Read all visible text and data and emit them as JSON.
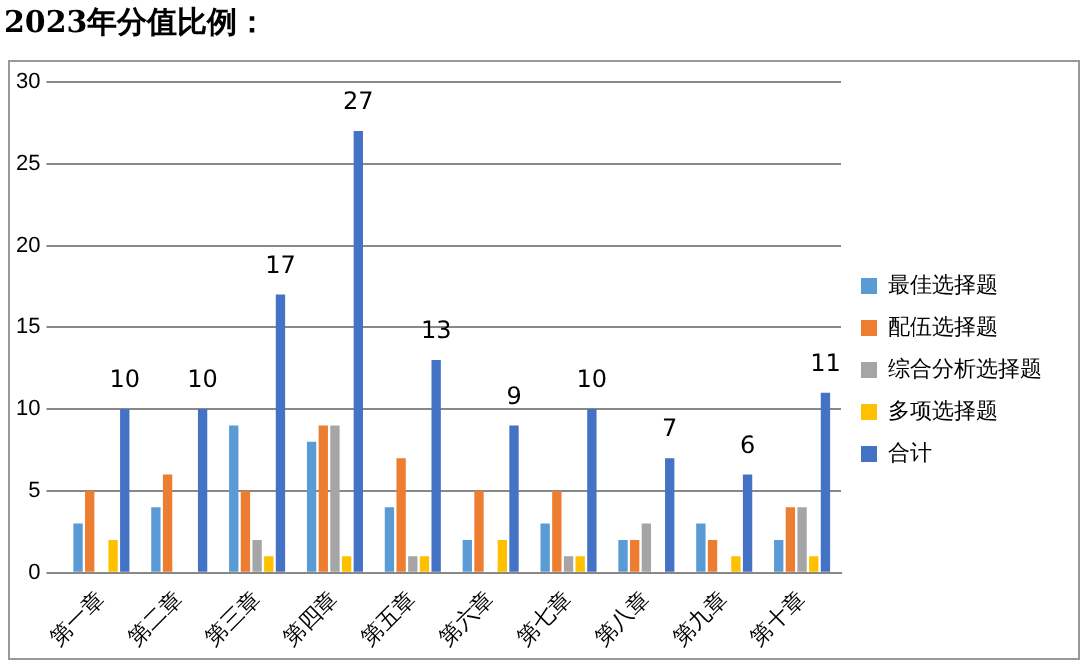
{
  "chart_data": {
    "type": "bar",
    "title": "2023年分值比例：",
    "categories": [
      "第一章",
      "第二章",
      "第三章",
      "第四章",
      "第五章",
      "第六章",
      "第七章",
      "第八章",
      "第九章",
      "第十章"
    ],
    "series": [
      {
        "name": "最佳选择题",
        "color": "#5b9bd5",
        "values": [
          3,
          4,
          9,
          8,
          4,
          2,
          3,
          2,
          3,
          2
        ]
      },
      {
        "name": "配伍选择题",
        "color": "#ed7d31",
        "values": [
          5,
          6,
          5,
          9,
          7,
          5,
          5,
          2,
          2,
          4
        ]
      },
      {
        "name": "综合分析选择题",
        "color": "#a5a5a5",
        "values": [
          0,
          0,
          2,
          9,
          1,
          0,
          1,
          3,
          0,
          4
        ]
      },
      {
        "name": "多项选择题",
        "color": "#ffc000",
        "values": [
          2,
          0,
          1,
          1,
          1,
          2,
          1,
          0,
          1,
          1
        ]
      },
      {
        "name": "合计",
        "color": "#4472c4",
        "values": [
          10,
          10,
          17,
          27,
          13,
          9,
          10,
          7,
          6,
          11
        ],
        "value_labels": [
          "10",
          "10",
          "17",
          "27",
          "13",
          "9",
          "10",
          "7",
          "6",
          "11"
        ]
      }
    ],
    "ylim": [
      0,
      30
    ],
    "yticks": [
      0,
      5,
      10,
      15,
      20,
      25,
      30
    ],
    "grid": "y",
    "legend": "right"
  }
}
